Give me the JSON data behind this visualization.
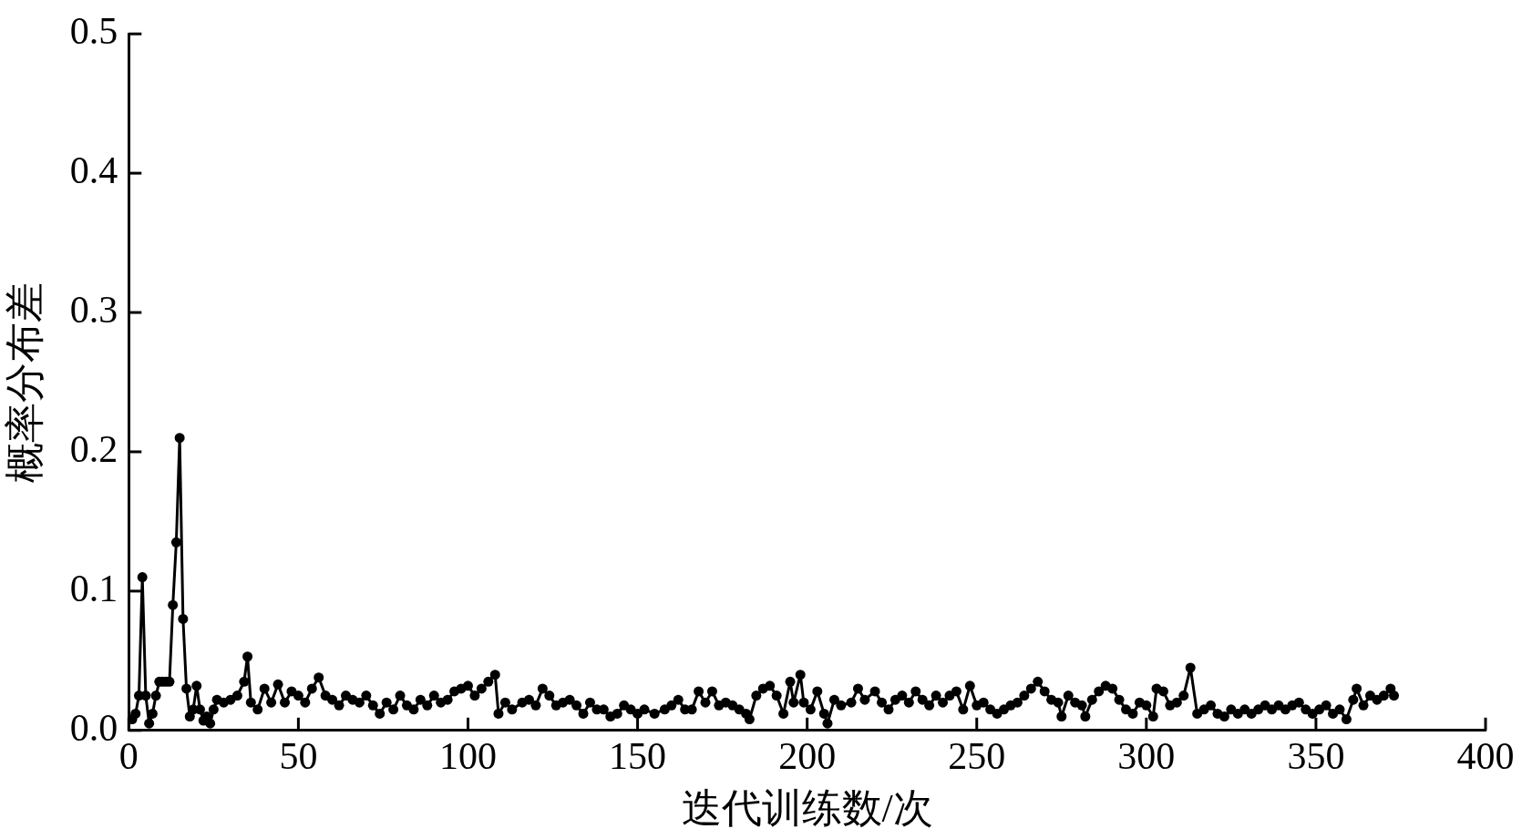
{
  "chart_data": {
    "type": "line",
    "xlabel": "迭代训练数/次",
    "ylabel": "概率分布差",
    "marker": "circle",
    "line_style": "solid",
    "grid": false,
    "legend": false,
    "xlim": [
      0,
      400
    ],
    "xticks": [
      0,
      50,
      100,
      150,
      200,
      250,
      300,
      350,
      400
    ],
    "ylim": [
      0,
      0.5
    ],
    "yticks": [
      {
        "value": 0,
        "label": "0.0"
      },
      {
        "value": 0.1,
        "label": "0.1"
      },
      {
        "value": 0.2,
        "label": "0.2"
      },
      {
        "value": 0.3,
        "label": "0.3"
      },
      {
        "value": 0.4,
        "label": "0.4"
      },
      {
        "value": 0.5,
        "label": "0.5"
      }
    ],
    "series": [
      {
        "color": "#000000",
        "x": [
          1,
          2,
          3,
          4,
          5,
          6,
          7,
          8,
          9,
          10,
          11,
          12,
          13,
          14,
          15,
          16,
          17,
          18,
          19,
          20,
          21,
          22,
          23,
          24,
          25,
          26,
          28,
          30,
          32,
          34,
          35,
          36,
          38,
          40,
          42,
          44,
          46,
          48,
          50,
          52,
          54,
          56,
          58,
          60,
          62,
          64,
          66,
          68,
          70,
          72,
          74,
          76,
          78,
          80,
          82,
          84,
          86,
          88,
          90,
          92,
          94,
          96,
          98,
          100,
          102,
          104,
          106,
          108,
          109,
          111,
          113,
          116,
          118,
          120,
          122,
          124,
          126,
          128,
          130,
          132,
          134,
          136,
          138,
          140,
          142,
          144,
          146,
          148,
          150,
          152,
          155,
          158,
          160,
          162,
          164,
          166,
          168,
          170,
          172,
          174,
          176,
          178,
          180,
          182,
          183,
          185,
          187,
          189,
          191,
          193,
          195,
          196,
          198,
          199,
          201,
          203,
          205,
          206,
          208,
          210,
          213,
          215,
          217,
          220,
          222,
          224,
          226,
          228,
          230,
          232,
          234,
          236,
          238,
          240,
          242,
          244,
          246,
          248,
          250,
          252,
          254,
          256,
          258,
          260,
          262,
          264,
          266,
          268,
          270,
          272,
          274,
          275,
          277,
          279,
          281,
          282,
          284,
          286,
          288,
          290,
          292,
          294,
          296,
          298,
          300,
          302,
          303,
          305,
          307,
          309,
          311,
          313,
          315,
          317,
          319,
          321,
          323,
          325,
          327,
          329,
          331,
          333,
          335,
          337,
          339,
          341,
          343,
          345,
          347,
          349,
          351,
          353,
          355,
          357,
          359,
          361,
          362,
          364,
          366,
          368,
          370,
          372,
          373
        ],
        "values": [
          0.008,
          0.012,
          0.025,
          0.11,
          0.025,
          0.005,
          0.012,
          0.025,
          0.035,
          0.035,
          0.035,
          0.035,
          0.09,
          0.135,
          0.21,
          0.08,
          0.03,
          0.01,
          0.015,
          0.032,
          0.015,
          0.007,
          0.01,
          0.005,
          0.015,
          0.022,
          0.02,
          0.022,
          0.025,
          0.035,
          0.053,
          0.02,
          0.015,
          0.03,
          0.02,
          0.033,
          0.02,
          0.028,
          0.025,
          0.02,
          0.03,
          0.038,
          0.025,
          0.022,
          0.018,
          0.025,
          0.022,
          0.02,
          0.025,
          0.018,
          0.012,
          0.02,
          0.015,
          0.025,
          0.018,
          0.015,
          0.022,
          0.018,
          0.025,
          0.02,
          0.022,
          0.028,
          0.03,
          0.032,
          0.025,
          0.03,
          0.035,
          0.04,
          0.012,
          0.02,
          0.015,
          0.02,
          0.022,
          0.018,
          0.03,
          0.025,
          0.018,
          0.02,
          0.022,
          0.018,
          0.012,
          0.02,
          0.015,
          0.015,
          0.01,
          0.012,
          0.018,
          0.015,
          0.012,
          0.015,
          0.012,
          0.015,
          0.018,
          0.022,
          0.015,
          0.015,
          0.028,
          0.02,
          0.028,
          0.018,
          0.02,
          0.018,
          0.015,
          0.012,
          0.008,
          0.025,
          0.03,
          0.032,
          0.025,
          0.012,
          0.035,
          0.02,
          0.04,
          0.02,
          0.015,
          0.028,
          0.012,
          0.005,
          0.022,
          0.018,
          0.02,
          0.03,
          0.022,
          0.028,
          0.02,
          0.015,
          0.022,
          0.025,
          0.02,
          0.028,
          0.022,
          0.018,
          0.025,
          0.02,
          0.025,
          0.028,
          0.015,
          0.032,
          0.018,
          0.02,
          0.015,
          0.012,
          0.015,
          0.018,
          0.02,
          0.025,
          0.03,
          0.035,
          0.028,
          0.022,
          0.02,
          0.01,
          0.025,
          0.02,
          0.018,
          0.01,
          0.022,
          0.028,
          0.032,
          0.03,
          0.022,
          0.015,
          0.012,
          0.02,
          0.018,
          0.01,
          0.03,
          0.028,
          0.018,
          0.02,
          0.025,
          0.045,
          0.012,
          0.015,
          0.018,
          0.012,
          0.01,
          0.015,
          0.012,
          0.015,
          0.012,
          0.015,
          0.018,
          0.015,
          0.018,
          0.015,
          0.018,
          0.02,
          0.015,
          0.012,
          0.015,
          0.018,
          0.012,
          0.015,
          0.008,
          0.022,
          0.03,
          0.018,
          0.025,
          0.022,
          0.025,
          0.03,
          0.025
        ]
      }
    ]
  }
}
